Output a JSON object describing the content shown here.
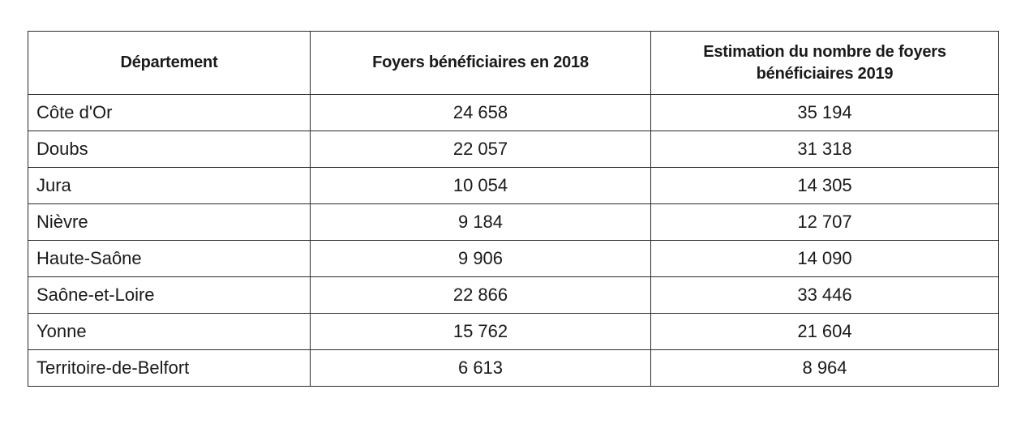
{
  "table": {
    "headers": {
      "departement": "Département",
      "foyers_2018": "Foyers bénéficiaires en 2018",
      "estimation_2019": "Estimation du nombre de foyers bénéficiaires 2019"
    },
    "rows": [
      {
        "departement": "Côte d'Or",
        "foyers_2018": "24 658",
        "estimation_2019": "35 194"
      },
      {
        "departement": "Doubs",
        "foyers_2018": "22 057",
        "estimation_2019": "31 318"
      },
      {
        "departement": "Jura",
        "foyers_2018": "10 054",
        "estimation_2019": "14 305"
      },
      {
        "departement": "Nièvre",
        "foyers_2018": "9 184",
        "estimation_2019": "12 707"
      },
      {
        "departement": "Haute-Saône",
        "foyers_2018": "9 906",
        "estimation_2019": "14 090"
      },
      {
        "departement": "Saône-et-Loire",
        "foyers_2018": "22 866",
        "estimation_2019": "33 446"
      },
      {
        "departement": "Yonne",
        "foyers_2018": "15 762",
        "estimation_2019": "21 604"
      },
      {
        "departement": "Territoire-de-Belfort",
        "foyers_2018": "6 613",
        "estimation_2019": "8 964"
      }
    ]
  }
}
